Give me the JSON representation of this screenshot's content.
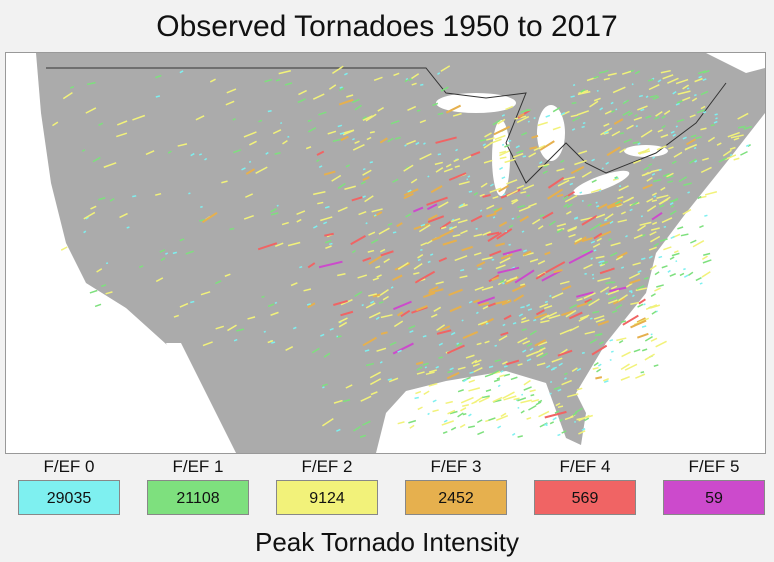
{
  "title": "Observed Tornadoes 1950 to 2017",
  "legend_title": "Peak Tornado Intensity",
  "legend": [
    {
      "label": "F/EF 0",
      "count": "29035",
      "color": "#7ef0f0"
    },
    {
      "label": "F/EF 1",
      "count": "21108",
      "color": "#7ee07e"
    },
    {
      "label": "F/EF 2",
      "count": "9124",
      "color": "#f2f27a"
    },
    {
      "label": "F/EF 3",
      "count": "2452",
      "color": "#e6b04e"
    },
    {
      "label": "F/EF 4",
      "count": "569",
      "color": "#f06464"
    },
    {
      "label": "F/EF 5",
      "count": "59",
      "color": "#cc4acc"
    }
  ],
  "map": {
    "land_color": "#ababab",
    "water_color": "#ffffff",
    "border_color": "#333333"
  }
}
